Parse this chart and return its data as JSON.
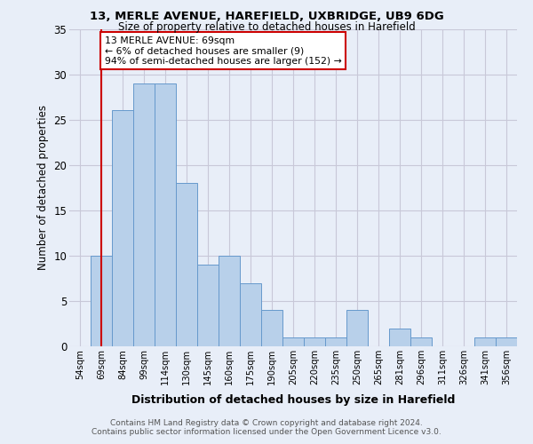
{
  "title1": "13, MERLE AVENUE, HAREFIELD, UXBRIDGE, UB9 6DG",
  "title2": "Size of property relative to detached houses in Harefield",
  "xlabel": "Distribution of detached houses by size in Harefield",
  "ylabel": "Number of detached properties",
  "categories": [
    "54sqm",
    "69sqm",
    "84sqm",
    "99sqm",
    "114sqm",
    "130sqm",
    "145sqm",
    "160sqm",
    "175sqm",
    "190sqm",
    "205sqm",
    "220sqm",
    "235sqm",
    "250sqm",
    "265sqm",
    "281sqm",
    "296sqm",
    "311sqm",
    "326sqm",
    "341sqm",
    "356sqm"
  ],
  "values": [
    0,
    10,
    26,
    29,
    29,
    18,
    9,
    10,
    7,
    4,
    1,
    1,
    1,
    4,
    0,
    2,
    1,
    0,
    0,
    1,
    1
  ],
  "highlight_index": 1,
  "bar_color": "#b8d0ea",
  "bar_edge_color": "#6699cc",
  "highlight_line_color": "#cc0000",
  "background_color": "#e8eef8",
  "grid_color": "#c8c8d8",
  "annotation_text": "13 MERLE AVENUE: 69sqm\n← 6% of detached houses are smaller (9)\n94% of semi-detached houses are larger (152) →",
  "footnote1": "Contains HM Land Registry data © Crown copyright and database right 2024.",
  "footnote2": "Contains public sector information licensed under the Open Government Licence v3.0.",
  "ylim": [
    0,
    35
  ],
  "yticks": [
    0,
    5,
    10,
    15,
    20,
    25,
    30,
    35
  ]
}
